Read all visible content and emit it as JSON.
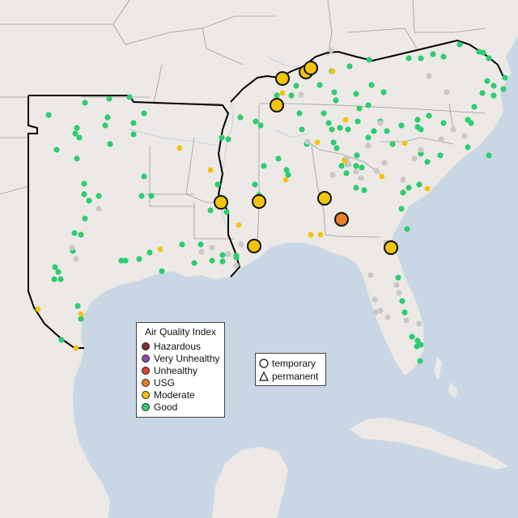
{
  "map": {
    "region": "Southeastern United States",
    "colors": {
      "land": "#ece9e6",
      "water": "#c9d6e3",
      "epa_region_border": "#000000",
      "state_border": "#9b9b9b",
      "rivers": "#c4d2e0"
    }
  },
  "legend": {
    "title": "Air Quality Index",
    "categories": [
      {
        "label": "Hazardous",
        "color": "#7e2f2a"
      },
      {
        "label": "Very Unhealthy",
        "color": "#8f4fa8"
      },
      {
        "label": "Unhealthy",
        "color": "#e0402e"
      },
      {
        "label": "USG",
        "color": "#e67e22"
      },
      {
        "label": "Moderate",
        "color": "#f2c40c"
      },
      {
        "label": "Good",
        "color": "#2ecc71"
      }
    ],
    "no_data_color": "#c8c8c8"
  },
  "monitor_type_legend": {
    "items": [
      {
        "label": "temporary",
        "symbol": "circle"
      },
      {
        "label": "permanent",
        "symbol": "triangle"
      }
    ]
  },
  "monitors": {
    "temporary": [
      {
        "category": "Moderate"
      },
      {
        "category": "Moderate"
      },
      {
        "category": "Moderate"
      },
      {
        "category": "Moderate"
      },
      {
        "category": "Moderate"
      },
      {
        "category": "Moderate"
      },
      {
        "category": "Moderate"
      },
      {
        "category": "USG"
      },
      {
        "category": "Moderate"
      },
      {
        "category": "Moderate"
      },
      {
        "category": "Moderate"
      }
    ]
  }
}
